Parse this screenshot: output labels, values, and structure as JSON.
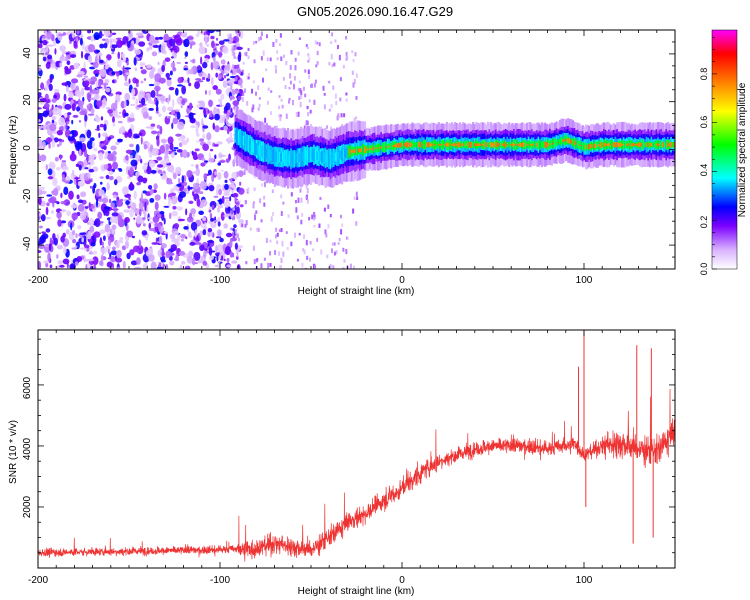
{
  "chart_data": [
    {
      "type": "heatmap",
      "title": "GN05.2026.090.16.47.G29",
      "xlabel": "Height of straight line (km)",
      "ylabel": "Frequency (Hz)",
      "xlim": [
        -200,
        150
      ],
      "ylim": [
        -50,
        50
      ],
      "x_ticks": [
        -200,
        -100,
        0,
        100
      ],
      "x_tick_labels": [
        "-200",
        "-100",
        "0",
        "100"
      ],
      "y_ticks": [
        -40,
        -20,
        0,
        20,
        40
      ],
      "y_tick_labels": [
        "-40",
        "-20",
        "0",
        "20",
        "40"
      ],
      "colorbar": {
        "label": "Normalized spectral amplitude",
        "range": [
          0,
          1
        ],
        "ticks": [
          0.0,
          0.2,
          0.4,
          0.6,
          0.8
        ],
        "tick_labels": [
          "0.0",
          "0.2",
          "0.4",
          "0.6",
          "0.8"
        ],
        "colormap": [
          "#ffffff",
          "#d9b3ff",
          "#7a00ff",
          "#0000ff",
          "#00ffff",
          "#00ff00",
          "#ffff00",
          "#ff8000",
          "#ff0000",
          "#ff00ff"
        ]
      },
      "ridge": {
        "x": [
          -90,
          -80,
          -70,
          -60,
          -50,
          -40,
          -30,
          -20,
          -10,
          0,
          20,
          40,
          60,
          80,
          90,
          100,
          110,
          120,
          130,
          140,
          150
        ],
        "frequency": [
          5,
          0,
          -3,
          -4,
          -2,
          -4,
          -1,
          0,
          1,
          2,
          2,
          2,
          2,
          2,
          4,
          1,
          2,
          2,
          2,
          2,
          2
        ]
      },
      "noise_region": {
        "x_start": -200,
        "x_end": -90,
        "typical_amplitude": 0.25
      }
    },
    {
      "type": "line",
      "xlabel": "Height of straight line (km)",
      "ylabel": "SNR (10 * v/v)",
      "xlim": [
        -200,
        150
      ],
      "ylim": [
        0,
        7800
      ],
      "x_ticks": [
        -200,
        -100,
        0,
        100
      ],
      "x_tick_labels": [
        "-200",
        "-100",
        "0",
        "100"
      ],
      "y_ticks": [
        2000,
        4000,
        6000
      ],
      "y_tick_labels": [
        "2000",
        "4000",
        "6000"
      ],
      "series": [
        {
          "name": "SNR",
          "color": "#ee3333",
          "trend_x": [
            -200,
            -150,
            -100,
            -80,
            -70,
            -60,
            -50,
            -40,
            -30,
            -20,
            -10,
            0,
            10,
            20,
            30,
            40,
            50,
            60,
            70,
            80,
            90,
            95,
            100,
            110,
            120,
            130,
            140,
            150
          ],
          "trend_y": [
            500,
            550,
            600,
            650,
            800,
            700,
            600,
            1000,
            1500,
            1800,
            2200,
            2600,
            3100,
            3500,
            3700,
            3900,
            4000,
            4000,
            4000,
            3900,
            4000,
            4100,
            3700,
            4000,
            4100,
            3900,
            3800,
            4500
          ],
          "spikes": [
            {
              "x": 100,
              "y": 7800
            },
            {
              "x": 97,
              "y": 6600
            },
            {
              "x": 129,
              "y": 7300
            },
            {
              "x": 137,
              "y": 7200
            },
            {
              "x": 127,
              "y": 800
            },
            {
              "x": 138,
              "y": 1000
            },
            {
              "x": 101,
              "y": 2000
            }
          ]
        }
      ]
    }
  ]
}
